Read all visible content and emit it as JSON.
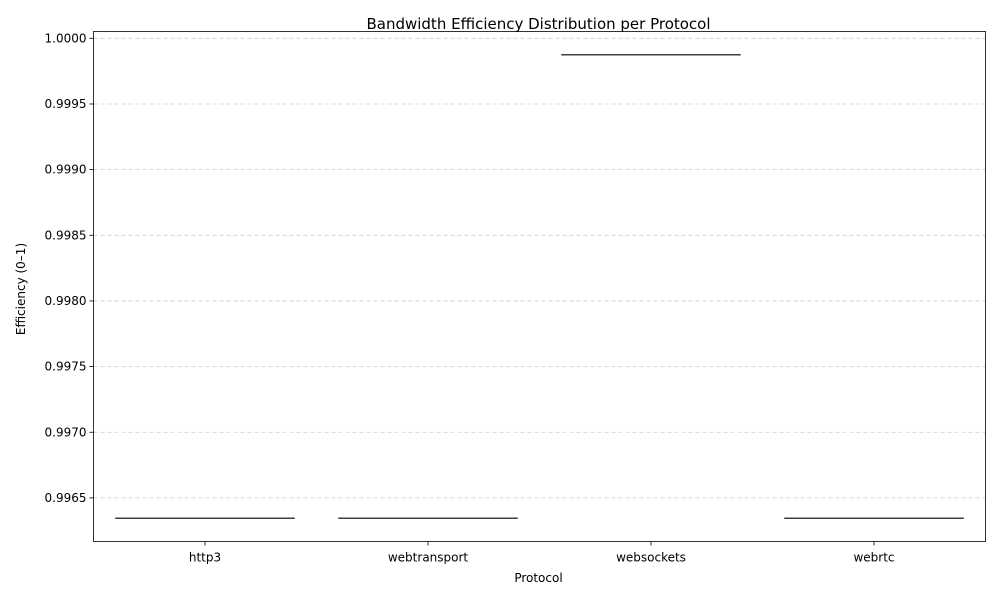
{
  "chart_data": {
    "type": "box",
    "title": "Bandwidth Efficiency Distribution per Protocol",
    "xlabel": "Protocol",
    "ylabel": "Efficiency (0–1)",
    "categories": [
      "http3",
      "webtransport",
      "websockets",
      "webrtc"
    ],
    "series": [
      {
        "category": "http3",
        "min": 0.996345,
        "q1": 0.996345,
        "median": 0.996345,
        "q3": 0.996345,
        "max": 0.996345
      },
      {
        "category": "webtransport",
        "min": 0.996345,
        "q1": 0.996345,
        "median": 0.996345,
        "q3": 0.996345,
        "max": 0.996345
      },
      {
        "category": "websockets",
        "min": 0.999875,
        "q1": 0.999875,
        "median": 0.999875,
        "q3": 0.999875,
        "max": 0.999875
      },
      {
        "category": "webrtc",
        "min": 0.996345,
        "q1": 0.996345,
        "median": 0.996345,
        "q3": 0.996345,
        "max": 0.996345
      }
    ],
    "ylim": [
      0.996168,
      1.000052
    ],
    "yticks": [
      0.9965,
      0.997,
      0.9975,
      0.998,
      0.9985,
      0.999,
      0.9995,
      1.0
    ],
    "ytick_labels": [
      "0.9965",
      "0.9970",
      "0.9975",
      "0.9980",
      "0.9985",
      "0.9990",
      "0.9995",
      "1.0000"
    ],
    "grid": "y",
    "colors": {
      "box_edge": "#3f3f3f",
      "grid": "#cccccc"
    }
  }
}
